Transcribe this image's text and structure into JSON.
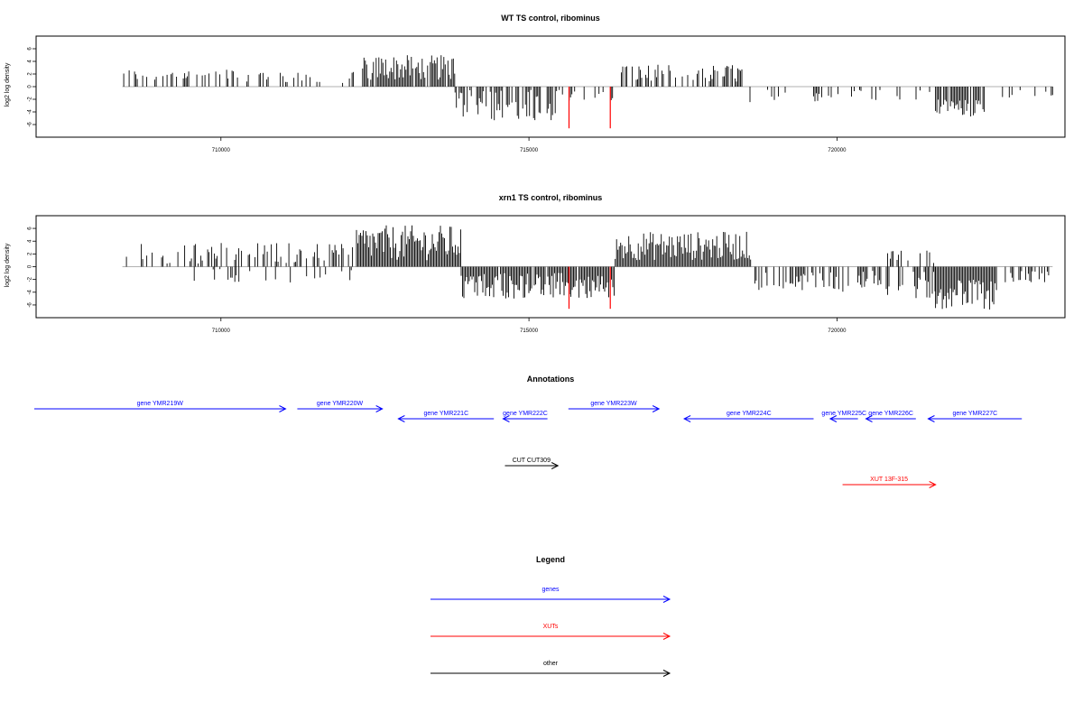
{
  "colors": {
    "bar": "#000000",
    "highlight": "#ff0000",
    "gene": "#0000ff",
    "xut": "#ff0000",
    "other": "#000000",
    "baseline": "#999999"
  },
  "chart_data": [
    {
      "type": "bar",
      "title": "WT TS control, ribominus",
      "ylabel": "log2 log density",
      "xlim": [
        707000,
        723700
      ],
      "ylim": [
        -7,
        7
      ],
      "x_ticks": [
        710000,
        715000,
        720000
      ],
      "x_tick_labels": [
        "710000",
        "715000",
        "720000"
      ],
      "y_ticks": [
        6,
        4,
        2,
        0,
        -2,
        -4,
        -6
      ],
      "y_tick_labels": [
        "6",
        "4",
        "2",
        "0",
        "-2",
        "-4",
        "-6"
      ],
      "regions": [
        {
          "start": 708400,
          "end": 710700,
          "sign": 1,
          "min": 0.8,
          "max": 2.8,
          "density": 0.35
        },
        {
          "start": 710700,
          "end": 712200,
          "sign": 1,
          "min": 0.5,
          "max": 2.4,
          "density": 0.3
        },
        {
          "start": 712300,
          "end": 713800,
          "sign": 1,
          "min": 1.0,
          "max": 5.0,
          "density": 0.85
        },
        {
          "start": 713800,
          "end": 715500,
          "sign": -1,
          "min": 0.5,
          "max": 5.5,
          "density": 0.6
        },
        {
          "start": 715500,
          "end": 716400,
          "sign": -1,
          "min": 0.5,
          "max": 2.5,
          "density": 0.3
        },
        {
          "start": 716500,
          "end": 718500,
          "sign": 1,
          "min": 0.6,
          "max": 3.5,
          "density": 0.55
        },
        {
          "start": 718500,
          "end": 720800,
          "sign": -1,
          "min": 0.5,
          "max": 2.5,
          "density": 0.12
        },
        {
          "start": 720800,
          "end": 721600,
          "sign": -1,
          "min": 0.5,
          "max": 2.8,
          "density": 0.2
        },
        {
          "start": 721600,
          "end": 722400,
          "sign": -1,
          "min": 2.0,
          "max": 4.8,
          "density": 0.9
        },
        {
          "start": 722400,
          "end": 723500,
          "sign": -1,
          "min": 0.5,
          "max": 2.0,
          "density": 0.18
        }
      ],
      "highlights": [
        {
          "x": 715650,
          "y": -6.6
        },
        {
          "x": 716320,
          "y": -6.6
        }
      ]
    },
    {
      "type": "bar",
      "title": "xrn1 TS control, ribominus",
      "ylabel": "log2 log density",
      "xlim": [
        707000,
        723700
      ],
      "ylim": [
        -7,
        7
      ],
      "x_ticks": [
        710000,
        715000,
        720000
      ],
      "x_tick_labels": [
        "710000",
        "715000",
        "720000"
      ],
      "y_ticks": [
        6,
        4,
        2,
        0,
        -2,
        -4,
        -6
      ],
      "y_tick_labels": [
        "6",
        "4",
        "2",
        "0",
        "-2",
        "-4",
        "-6"
      ],
      "regions": [
        {
          "start": 708400,
          "end": 712200,
          "sign": 1,
          "min": 0.5,
          "max": 3.8,
          "density": 0.4
        },
        {
          "start": 709500,
          "end": 712300,
          "sign": -1,
          "min": 0.3,
          "max": 2.5,
          "density": 0.12
        },
        {
          "start": 712200,
          "end": 713900,
          "sign": 1,
          "min": 1.0,
          "max": 6.5,
          "density": 1.0
        },
        {
          "start": 713900,
          "end": 716400,
          "sign": -1,
          "min": 1.0,
          "max": 5.0,
          "density": 0.95
        },
        {
          "start": 716400,
          "end": 718600,
          "sign": 1,
          "min": 1.0,
          "max": 5.5,
          "density": 1.0
        },
        {
          "start": 718600,
          "end": 720800,
          "sign": -1,
          "min": 0.5,
          "max": 4.0,
          "density": 0.45
        },
        {
          "start": 720800,
          "end": 721600,
          "sign": -1,
          "min": 0.8,
          "max": 5.0,
          "density": 0.6
        },
        {
          "start": 720800,
          "end": 721600,
          "sign": 1,
          "min": 0.5,
          "max": 2.8,
          "density": 0.25
        },
        {
          "start": 721600,
          "end": 722600,
          "sign": -1,
          "min": 2.0,
          "max": 6.8,
          "density": 1.0
        },
        {
          "start": 722600,
          "end": 723500,
          "sign": -1,
          "min": 0.5,
          "max": 2.5,
          "density": 0.5
        }
      ],
      "highlights": [
        {
          "x": 715650,
          "y": -6.6
        },
        {
          "x": 716320,
          "y": -6.6
        }
      ]
    }
  ],
  "annotations": {
    "title": "Annotations",
    "items": [
      {
        "label": "gene YMR219W",
        "start": 706800,
        "end": 711050,
        "row": 0,
        "type": "gene",
        "strand": "+"
      },
      {
        "label": "gene YMR220W",
        "start": 711240,
        "end": 712620,
        "row": 0,
        "type": "gene",
        "strand": "+"
      },
      {
        "label": "gene YMR221C",
        "start": 712880,
        "end": 714430,
        "row": 1,
        "type": "gene",
        "strand": "-"
      },
      {
        "label": "gene YMR222C",
        "start": 714580,
        "end": 715300,
        "row": 1,
        "type": "gene",
        "strand": "-"
      },
      {
        "label": "gene YMR223W",
        "start": 715640,
        "end": 717110,
        "row": 0,
        "type": "gene",
        "strand": "+"
      },
      {
        "label": "gene YMR224C",
        "start": 717520,
        "end": 719620,
        "row": 1,
        "type": "gene",
        "strand": "-"
      },
      {
        "label": "gene YMR225C",
        "start": 719890,
        "end": 720340,
        "row": 1,
        "type": "gene",
        "strand": "-"
      },
      {
        "label": "gene YMR226C",
        "start": 720470,
        "end": 721280,
        "row": 1,
        "type": "gene",
        "strand": "-"
      },
      {
        "label": "gene YMR227C",
        "start": 721480,
        "end": 723000,
        "row": 1,
        "type": "gene",
        "strand": "-"
      },
      {
        "label": "CUT CUT309",
        "start": 714610,
        "end": 715470,
        "row": 2,
        "type": "other",
        "strand": "+"
      },
      {
        "label": "XUT 13F-315",
        "start": 720090,
        "end": 721600,
        "row": 3,
        "type": "xut",
        "strand": "+"
      }
    ]
  },
  "legend": {
    "title": "Legend",
    "items": [
      {
        "label": "genes",
        "type": "gene"
      },
      {
        "label": "XUTs",
        "type": "xut"
      },
      {
        "label": "other",
        "type": "other"
      }
    ]
  }
}
